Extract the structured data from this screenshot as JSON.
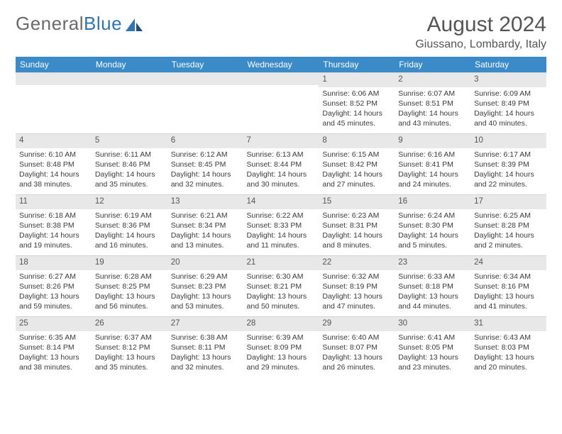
{
  "brand": {
    "part1": "General",
    "part2": "Blue"
  },
  "title": "August 2024",
  "location": "Giussano, Lombardy, Italy",
  "colors": {
    "header_bg": "#3b8bc9",
    "header_text": "#ffffff",
    "daynum_bg": "#e8e8e8",
    "border": "#cfd6dd",
    "text": "#333333",
    "brand_gray": "#6a6a6a",
    "brand_blue": "#2e75b6"
  },
  "fontsizes": {
    "title": 30,
    "subtitle": 16,
    "weekday": 12,
    "daynum": 11.5,
    "body": 10.5
  },
  "weekdays": [
    "Sunday",
    "Monday",
    "Tuesday",
    "Wednesday",
    "Thursday",
    "Friday",
    "Saturday"
  ],
  "weeks": [
    [
      {
        "n": "",
        "t": ""
      },
      {
        "n": "",
        "t": ""
      },
      {
        "n": "",
        "t": ""
      },
      {
        "n": "",
        "t": ""
      },
      {
        "n": "1",
        "t": "Sunrise: 6:06 AM\nSunset: 8:52 PM\nDaylight: 14 hours and 45 minutes."
      },
      {
        "n": "2",
        "t": "Sunrise: 6:07 AM\nSunset: 8:51 PM\nDaylight: 14 hours and 43 minutes."
      },
      {
        "n": "3",
        "t": "Sunrise: 6:09 AM\nSunset: 8:49 PM\nDaylight: 14 hours and 40 minutes."
      }
    ],
    [
      {
        "n": "4",
        "t": "Sunrise: 6:10 AM\nSunset: 8:48 PM\nDaylight: 14 hours and 38 minutes."
      },
      {
        "n": "5",
        "t": "Sunrise: 6:11 AM\nSunset: 8:46 PM\nDaylight: 14 hours and 35 minutes."
      },
      {
        "n": "6",
        "t": "Sunrise: 6:12 AM\nSunset: 8:45 PM\nDaylight: 14 hours and 32 minutes."
      },
      {
        "n": "7",
        "t": "Sunrise: 6:13 AM\nSunset: 8:44 PM\nDaylight: 14 hours and 30 minutes."
      },
      {
        "n": "8",
        "t": "Sunrise: 6:15 AM\nSunset: 8:42 PM\nDaylight: 14 hours and 27 minutes."
      },
      {
        "n": "9",
        "t": "Sunrise: 6:16 AM\nSunset: 8:41 PM\nDaylight: 14 hours and 24 minutes."
      },
      {
        "n": "10",
        "t": "Sunrise: 6:17 AM\nSunset: 8:39 PM\nDaylight: 14 hours and 22 minutes."
      }
    ],
    [
      {
        "n": "11",
        "t": "Sunrise: 6:18 AM\nSunset: 8:38 PM\nDaylight: 14 hours and 19 minutes."
      },
      {
        "n": "12",
        "t": "Sunrise: 6:19 AM\nSunset: 8:36 PM\nDaylight: 14 hours and 16 minutes."
      },
      {
        "n": "13",
        "t": "Sunrise: 6:21 AM\nSunset: 8:34 PM\nDaylight: 14 hours and 13 minutes."
      },
      {
        "n": "14",
        "t": "Sunrise: 6:22 AM\nSunset: 8:33 PM\nDaylight: 14 hours and 11 minutes."
      },
      {
        "n": "15",
        "t": "Sunrise: 6:23 AM\nSunset: 8:31 PM\nDaylight: 14 hours and 8 minutes."
      },
      {
        "n": "16",
        "t": "Sunrise: 6:24 AM\nSunset: 8:30 PM\nDaylight: 14 hours and 5 minutes."
      },
      {
        "n": "17",
        "t": "Sunrise: 6:25 AM\nSunset: 8:28 PM\nDaylight: 14 hours and 2 minutes."
      }
    ],
    [
      {
        "n": "18",
        "t": "Sunrise: 6:27 AM\nSunset: 8:26 PM\nDaylight: 13 hours and 59 minutes."
      },
      {
        "n": "19",
        "t": "Sunrise: 6:28 AM\nSunset: 8:25 PM\nDaylight: 13 hours and 56 minutes."
      },
      {
        "n": "20",
        "t": "Sunrise: 6:29 AM\nSunset: 8:23 PM\nDaylight: 13 hours and 53 minutes."
      },
      {
        "n": "21",
        "t": "Sunrise: 6:30 AM\nSunset: 8:21 PM\nDaylight: 13 hours and 50 minutes."
      },
      {
        "n": "22",
        "t": "Sunrise: 6:32 AM\nSunset: 8:19 PM\nDaylight: 13 hours and 47 minutes."
      },
      {
        "n": "23",
        "t": "Sunrise: 6:33 AM\nSunset: 8:18 PM\nDaylight: 13 hours and 44 minutes."
      },
      {
        "n": "24",
        "t": "Sunrise: 6:34 AM\nSunset: 8:16 PM\nDaylight: 13 hours and 41 minutes."
      }
    ],
    [
      {
        "n": "25",
        "t": "Sunrise: 6:35 AM\nSunset: 8:14 PM\nDaylight: 13 hours and 38 minutes."
      },
      {
        "n": "26",
        "t": "Sunrise: 6:37 AM\nSunset: 8:12 PM\nDaylight: 13 hours and 35 minutes."
      },
      {
        "n": "27",
        "t": "Sunrise: 6:38 AM\nSunset: 8:11 PM\nDaylight: 13 hours and 32 minutes."
      },
      {
        "n": "28",
        "t": "Sunrise: 6:39 AM\nSunset: 8:09 PM\nDaylight: 13 hours and 29 minutes."
      },
      {
        "n": "29",
        "t": "Sunrise: 6:40 AM\nSunset: 8:07 PM\nDaylight: 13 hours and 26 minutes."
      },
      {
        "n": "30",
        "t": "Sunrise: 6:41 AM\nSunset: 8:05 PM\nDaylight: 13 hours and 23 minutes."
      },
      {
        "n": "31",
        "t": "Sunrise: 6:43 AM\nSunset: 8:03 PM\nDaylight: 13 hours and 20 minutes."
      }
    ]
  ]
}
